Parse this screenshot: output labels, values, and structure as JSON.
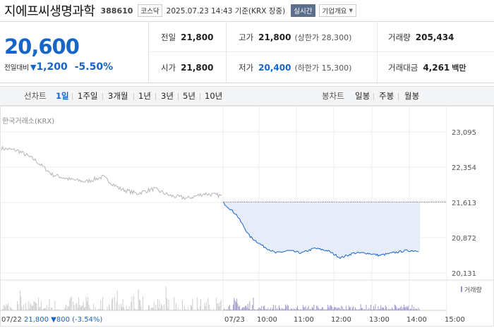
{
  "header": {
    "name": "지에프씨생명과학",
    "code": "388610",
    "market": "코스닥",
    "datetime": "2025.07.23 14:43 기준(KRX 장중)",
    "realtime": "실시간",
    "company_info": "기업개요"
  },
  "quote": {
    "price": "20,600",
    "change_label": "전일대비",
    "change_value": "1,200",
    "change_percent": "-5.50%",
    "prev_close_label": "전일",
    "prev_close": "21,800",
    "high_label": "고가",
    "high": "21,800",
    "upper_limit": "(상한가 28,300)",
    "volume_label": "거래량",
    "volume": "205,434",
    "open_label": "시가",
    "open": "21,800",
    "low_label": "저가",
    "low": "20,400",
    "lower_limit": "(하한가 15,300)",
    "amount_label": "거래대금",
    "amount": "4,261",
    "amount_unit": "백만"
  },
  "tabs": {
    "line_chart": "선차트",
    "ranges": [
      "1일",
      "1주일",
      "3개월",
      "1년",
      "3년",
      "5년",
      "10년"
    ],
    "candle_chart": "봉차트",
    "candles": [
      "일봉",
      "주봉",
      "월봉"
    ]
  },
  "chart": {
    "exchange": "한국거래소(KRX)",
    "y_ticks": [
      "23,095",
      "22,354",
      "21,613",
      "20,872",
      "20,131"
    ],
    "volume_legend": "거래량",
    "x_ticks": [
      "07/22",
      "07/23",
      "10:00",
      "11:00",
      "12:00",
      "13:00",
      "14:00",
      "15:00"
    ],
    "prev_info": "21,800",
    "prev_change": "800",
    "prev_pct": "(-3.54%)",
    "colors": {
      "up": "#e02a2a",
      "down": "#1865c8",
      "fill": "#e6edf9"
    }
  },
  "chart_data": {
    "type": "line",
    "ylim": [
      20131,
      23095
    ],
    "reference_line": 21800,
    "series": [
      {
        "x": [
          "07/22 09:00",
          "07/22 09:30",
          "07/22 10:00",
          "07/22 10:30",
          "07/22 11:00",
          "07/22 11:30",
          "07/22 12:00",
          "07/22 12:30",
          "07/22 13:00",
          "07/22 13:30",
          "07/22 14:00",
          "07/22 14:30",
          "07/22 15:00",
          "07/22 15:30"
        ],
        "values": [
          22750,
          22700,
          22500,
          22200,
          22100,
          22050,
          22150,
          21900,
          21800,
          21900,
          21750,
          21700,
          21800,
          21750
        ]
      },
      {
        "x": [
          "07/23 09:00",
          "07/23 09:10",
          "07/23 09:20",
          "07/23 09:30",
          "07/23 09:40",
          "07/23 10:00",
          "07/23 10:30",
          "07/23 11:00",
          "07/23 11:30",
          "07/23 12:00",
          "07/23 12:30",
          "07/23 13:00",
          "07/23 13:30",
          "07/23 14:00",
          "07/23 14:30",
          "07/23 14:43"
        ],
        "values": [
          21600,
          21350,
          20900,
          20700,
          20550,
          20600,
          20550,
          20650,
          20600,
          20450,
          20550,
          20550,
          20500,
          20550,
          20600,
          20600
        ]
      }
    ]
  }
}
